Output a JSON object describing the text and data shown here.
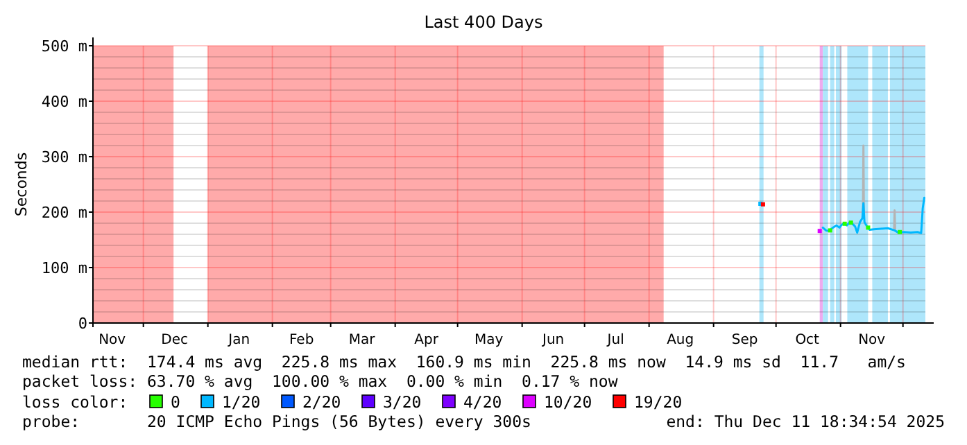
{
  "chart_data": {
    "type": "line",
    "title": "Last 400 Days",
    "ylabel": "Seconds",
    "legend_title": "loss color:",
    "legend": "bottom",
    "grid": true,
    "xlim": [
      "2024-11-06T18:34",
      "2025-12-11T18:34"
    ],
    "xticks": [
      {
        "value": "2024-11-16",
        "label": "Nov"
      },
      {
        "value": "2024-12-01",
        "label": null
      },
      {
        "value": "2024-12-16",
        "label": "Dec"
      },
      {
        "value": "2025-01-01",
        "label": null
      },
      {
        "value": "2025-01-16",
        "label": "Jan"
      },
      {
        "value": "2025-02-01",
        "label": null
      },
      {
        "value": "2025-02-15",
        "label": "Feb"
      },
      {
        "value": "2025-03-01",
        "label": null
      },
      {
        "value": "2025-03-16",
        "label": "Mar"
      },
      {
        "value": "2025-04-01",
        "label": null
      },
      {
        "value": "2025-04-16",
        "label": "Apr"
      },
      {
        "value": "2025-05-01",
        "label": null
      },
      {
        "value": "2025-05-16",
        "label": "May"
      },
      {
        "value": "2025-06-01",
        "label": null
      },
      {
        "value": "2025-06-16",
        "label": "Jun"
      },
      {
        "value": "2025-07-01",
        "label": null
      },
      {
        "value": "2025-07-16",
        "label": "Jul"
      },
      {
        "value": "2025-08-01",
        "label": null
      },
      {
        "value": "2025-08-16",
        "label": "Aug"
      },
      {
        "value": "2025-09-01",
        "label": null
      },
      {
        "value": "2025-09-16",
        "label": "Sep"
      },
      {
        "value": "2025-10-01",
        "label": null
      },
      {
        "value": "2025-10-16",
        "label": "Oct"
      },
      {
        "value": "2025-11-01",
        "label": null
      },
      {
        "value": "2025-11-16",
        "label": "Nov"
      },
      {
        "value": "2025-12-01",
        "label": null
      }
    ],
    "ylim": [
      0,
      500
    ],
    "yticks": [
      {
        "value": 0,
        "label": "0"
      },
      {
        "value": 20,
        "label": null
      },
      {
        "value": 40,
        "label": null
      },
      {
        "value": 60,
        "label": null
      },
      {
        "value": 80,
        "label": null
      },
      {
        "value": 100,
        "label": "100 m"
      },
      {
        "value": 120,
        "label": null
      },
      {
        "value": 140,
        "label": null
      },
      {
        "value": 160,
        "label": null
      },
      {
        "value": 180,
        "label": null
      },
      {
        "value": 200,
        "label": "200 m"
      },
      {
        "value": 220,
        "label": null
      },
      {
        "value": 240,
        "label": null
      },
      {
        "value": 260,
        "label": null
      },
      {
        "value": 280,
        "label": null
      },
      {
        "value": 300,
        "label": "300 m"
      },
      {
        "value": 320,
        "label": null
      },
      {
        "value": 340,
        "label": null
      },
      {
        "value": 360,
        "label": null
      },
      {
        "value": 380,
        "label": null
      },
      {
        "value": 400,
        "label": "400 m"
      },
      {
        "value": 420,
        "label": null
      },
      {
        "value": 440,
        "label": null
      },
      {
        "value": 460,
        "label": null
      },
      {
        "value": 480,
        "label": null
      },
      {
        "value": 500,
        "label": "500 m"
      }
    ],
    "bands": [
      {
        "axis": "x",
        "from": "2024-11-06T18:34",
        "to": "2024-12-15T12:00",
        "color": "#ffaaaa"
      },
      {
        "axis": "x",
        "from": "2025-01-01",
        "to": "2025-08-08",
        "color": "#ffaaaa"
      },
      {
        "axis": "x",
        "from": "2025-09-23",
        "to": "2025-09-25",
        "color": "#aee6fb"
      },
      {
        "axis": "x",
        "from": "2025-10-22",
        "to": "2025-10-23T12:00",
        "color": "#eeaaee"
      },
      {
        "axis": "x",
        "from": "2025-10-23T12:00",
        "to": "2025-10-26",
        "color": "#aee6fb"
      },
      {
        "axis": "x",
        "from": "2025-10-27",
        "to": "2025-10-29",
        "color": "#aee6fb"
      },
      {
        "axis": "x",
        "from": "2025-10-29T18:00",
        "to": "2025-11-01T12:00",
        "color": "#aee6fb"
      },
      {
        "axis": "x",
        "from": "2025-11-04T06:00",
        "to": "2025-11-14T06:00",
        "color": "#aee6fb"
      },
      {
        "axis": "x",
        "from": "2025-11-16T06:00",
        "to": "2025-11-23T18:00",
        "color": "#aee6fb"
      },
      {
        "axis": "x",
        "from": "2025-11-24T18:00",
        "to": "2025-12-11T18:34",
        "color": "#aee6fb"
      }
    ],
    "series": [
      {
        "color": "#b4b4b4",
        "x": [
          "2025-11-11T18:00",
          "2025-11-12",
          "2025-11-12T06:00",
          null,
          "2025-11-26T18:00",
          "2025-11-27",
          "2025-11-27T06:00"
        ],
        "values": [
          190,
          320,
          190,
          null,
          170,
          203,
          170
        ]
      },
      {
        "name": "0",
        "color": "#26ff00",
        "type": "scatter",
        "marker": "square",
        "x": [
          "2025-10-27",
          "2025-11-03",
          "2025-11-06",
          "2025-11-14T06:00",
          "2025-11-29T12:00"
        ],
        "values": [
          167,
          179,
          181,
          172,
          164
        ]
      },
      {
        "name": "1/20",
        "color": "#00b8ff",
        "x": [
          "2025-09-23T12:00",
          null,
          "2025-10-23T12:00",
          "2025-10-25",
          "2025-10-26T12:00",
          "2025-10-28T08:00",
          "2025-10-30",
          "2025-10-31T12:00",
          "2025-11-01T12:00",
          "2025-11-02T18:00",
          "2025-11-04",
          "2025-11-05T12:00",
          "2025-11-07",
          "2025-11-08",
          "2025-11-09",
          "2025-11-10T08:00",
          "2025-11-11T12:00",
          "2025-11-12",
          "2025-11-12T12:00",
          "2025-11-13T18:00",
          "2025-11-15",
          "2025-11-17",
          "2025-11-20T08:00",
          "2025-11-23T18:00",
          "2025-11-27",
          "2025-11-28T18:00",
          "2025-12-01T12:00",
          "2025-12-04T18:00",
          "2025-12-08",
          "2025-12-09T18:00",
          "2025-12-10T12:00",
          "2025-12-11T06:00"
        ],
        "values": [
          215,
          null,
          172,
          167,
          166,
          172,
          176,
          172,
          177,
          180,
          176,
          182,
          178,
          174,
          163,
          182,
          189,
          216,
          182,
          174,
          168,
          169,
          170,
          171,
          167,
          163,
          164,
          163,
          164,
          162,
          207,
          226
        ]
      },
      {
        "name": "2/20",
        "color": "#0059ff"
      },
      {
        "name": "3/20",
        "color": "#5e00ff"
      },
      {
        "name": "4/20",
        "color": "#7e00ff"
      },
      {
        "name": "10/20",
        "color": "#dd00ff",
        "type": "scatter",
        "marker": "square",
        "x": [
          "2025-10-22"
        ],
        "values": [
          166
        ]
      },
      {
        "name": "19/20",
        "color": "#ff0000",
        "type": "scatter",
        "marker": "square",
        "x": [
          "2025-09-24T18:00"
        ],
        "values": [
          214
        ]
      }
    ],
    "annotations": [
      "median rtt:  174.4 ms avg  225.8 ms max  160.9 ms min  225.8 ms now  14.9 ms sd  11.7   am/s",
      "packet loss: 63.70 % avg  100.00 % max  0.00 % min  0.17 % now",
      "probe:       20 ICMP Echo Pings (56 Bytes) every 300s",
      "end: Thu Dec 11 18:34:54 2025"
    ]
  }
}
